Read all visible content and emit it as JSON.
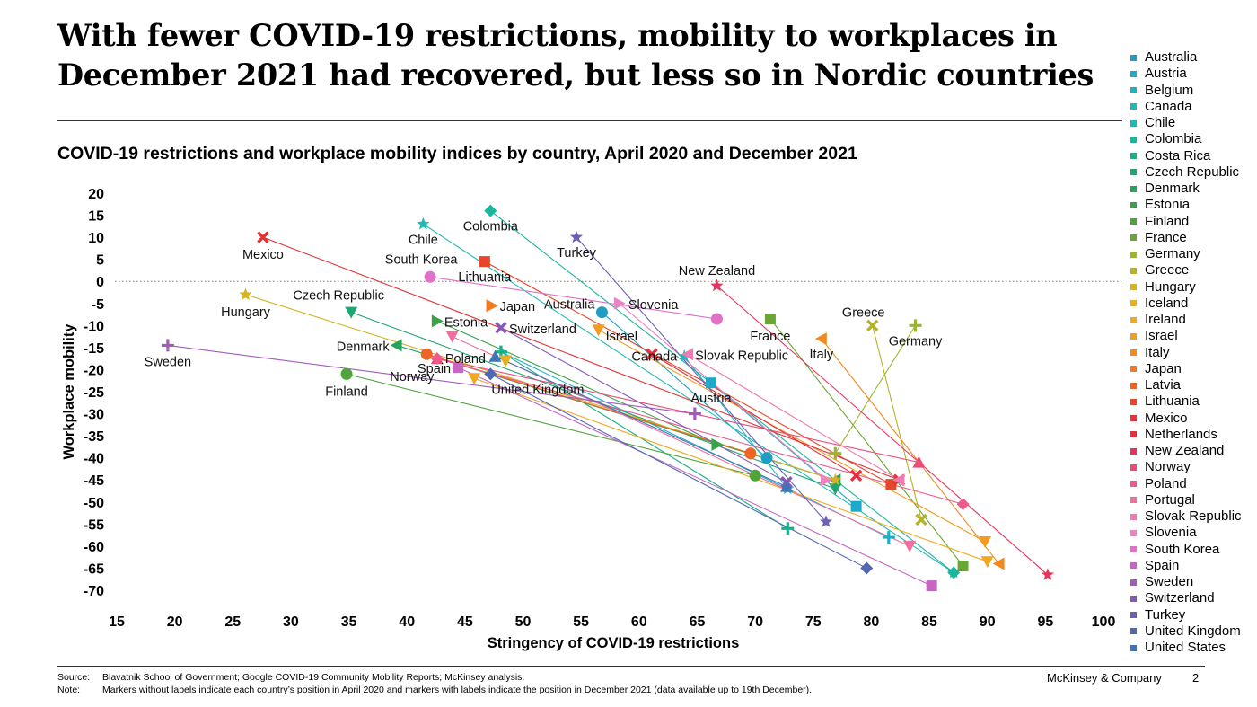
{
  "headline": "With fewer COVID-19 restrictions, mobility to workplaces in December 2021 had recovered, but less so in Nordic countries",
  "footer": {
    "source_key": "Source:",
    "source_text": "Blavatnik School of Government; Google COVID-19 Community Mobility Reports; McKinsey analysis.",
    "note_key": "Note:",
    "note_text": "Markers without labels indicate each country’s position in April 2020 and markers with labels indicate the position in December 2021 (data available up to 19th December).",
    "brand": "McKinsey & Company",
    "page": "2"
  },
  "chart_data": {
    "type": "scatter",
    "title": "COVID-19 restrictions and workplace mobility indices by country, April 2020 and December 2021",
    "xlabel": "Stringency of COVID-19 restrictions",
    "ylabel": "Workplace mobility",
    "xlim": [
      15,
      100
    ],
    "ylim": [
      -70,
      20
    ],
    "xticks": [
      15,
      20,
      25,
      30,
      35,
      40,
      45,
      50,
      55,
      60,
      65,
      70,
      75,
      80,
      85,
      90,
      95,
      100
    ],
    "yticks": [
      20,
      15,
      10,
      5,
      0,
      -5,
      -10,
      -15,
      -20,
      -25,
      -30,
      -35,
      -40,
      -45,
      -50,
      -55,
      -60,
      -65,
      -70
    ],
    "zero_line": "dotted",
    "legend_position": "right",
    "series": [
      {
        "name": "Australia",
        "color": "#1f9ec3",
        "marker": "circle",
        "april_2020": [
          71,
          -40
        ],
        "december_2021": [
          56.8,
          -7
        ],
        "label": "Australia"
      },
      {
        "name": "Austria",
        "color": "#1fa9c8",
        "marker": "square",
        "april_2020": [
          78.7,
          -51
        ],
        "december_2021": [
          66.2,
          -23
        ],
        "label": "Austria"
      },
      {
        "name": "Belgium",
        "color": "#1db0c4",
        "marker": "cross",
        "april_2020": [
          81.5,
          -58
        ],
        "december_2021": [
          48.1,
          -16
        ],
        "label": ""
      },
      {
        "name": "Canada",
        "color": "#21b7bd",
        "marker": "star",
        "april_2020": [
          72.8,
          -47
        ],
        "december_2021": [
          63.9,
          -17
        ],
        "label": "Canada"
      },
      {
        "name": "Chile",
        "color": "#22b9b5",
        "marker": "star",
        "april_2020": [
          87.1,
          -66
        ],
        "december_2021": [
          41.4,
          13
        ],
        "label": "Chile"
      },
      {
        "name": "Colombia",
        "color": "#1ab59d",
        "marker": "diamond",
        "april_2020": [
          87.1,
          -66
        ],
        "december_2021": [
          47.2,
          16
        ],
        "label": "Colombia"
      },
      {
        "name": "Costa Rica",
        "color": "#1cae88",
        "marker": "cross",
        "april_2020": [
          72.8,
          -56
        ],
        "december_2021": [
          48.1,
          -16
        ],
        "label": ""
      },
      {
        "name": "Czech Republic",
        "color": "#20a472",
        "marker": "triangle-down",
        "april_2020": [
          76.9,
          -47
        ],
        "december_2021": [
          35.2,
          -7
        ],
        "label": "Czech Republic"
      },
      {
        "name": "Denmark",
        "color": "#25a35a",
        "marker": "triangle-left",
        "april_2020": [
          76.9,
          -45
        ],
        "december_2021": [
          39.1,
          -14.5
        ],
        "label": "Denmark"
      },
      {
        "name": "Estonia",
        "color": "#3aa34a",
        "marker": "triangle-right",
        "april_2020": [
          66.7,
          -37
        ],
        "december_2021": [
          42.6,
          -9
        ],
        "label": "Estonia"
      },
      {
        "name": "Finland",
        "color": "#4ea43a",
        "marker": "circle",
        "april_2020": [
          70,
          -44
        ],
        "december_2021": [
          34.8,
          -21
        ],
        "label": "Finland"
      },
      {
        "name": "France",
        "color": "#6aa634",
        "marker": "square",
        "april_2020": [
          87.9,
          -64.5
        ],
        "december_2021": [
          71.3,
          -8.5
        ],
        "label": "France"
      },
      {
        "name": "Germany",
        "color": "#9cb52f",
        "marker": "cross",
        "april_2020": [
          76.9,
          -39
        ],
        "december_2021": [
          83.8,
          -10
        ],
        "label": "Germany"
      },
      {
        "name": "Greece",
        "color": "#b3b32a",
        "marker": "x",
        "april_2020": [
          84.3,
          -54
        ],
        "december_2021": [
          80.1,
          -10
        ],
        "label": "Greece"
      },
      {
        "name": "Hungary",
        "color": "#d5b325",
        "marker": "star",
        "april_2020": [
          76.9,
          -45
        ],
        "december_2021": [
          26.1,
          -3
        ],
        "label": "Hungary"
      },
      {
        "name": "Iceland",
        "color": "#e8b021",
        "marker": "triangle-down",
        "april_2020": [
          48.5,
          -18
        ],
        "december_2021": [
          48.5,
          -18
        ],
        "label": ""
      },
      {
        "name": "Ireland",
        "color": "#f2a81f",
        "marker": "triangle-down",
        "april_2020": [
          90,
          -63.5
        ],
        "december_2021": [
          45.8,
          -22
        ],
        "label": ""
      },
      {
        "name": "Israel",
        "color": "#f49c1f",
        "marker": "triangle-down",
        "april_2020": [
          89.8,
          -59
        ],
        "december_2021": [
          56.5,
          -11
        ],
        "label": "Israel"
      },
      {
        "name": "Italy",
        "color": "#f28a1f",
        "marker": "triangle-left",
        "april_2020": [
          91,
          -64
        ],
        "december_2021": [
          75.7,
          -13
        ],
        "label": "Italy"
      },
      {
        "name": "Japan",
        "color": "#f2791f",
        "marker": "triangle-right",
        "april_2020": [
          47.3,
          -5.5
        ],
        "december_2021": [
          47.3,
          -5.5
        ],
        "label": "Japan"
      },
      {
        "name": "Latvia",
        "color": "#ee6422",
        "marker": "circle",
        "april_2020": [
          69.6,
          -39
        ],
        "december_2021": [
          41.7,
          -16.5
        ],
        "label": ""
      },
      {
        "name": "Lithuania",
        "color": "#e84628",
        "marker": "square",
        "april_2020": [
          81.7,
          -46
        ],
        "december_2021": [
          46.7,
          4.5
        ],
        "label": "Lithuania"
      },
      {
        "name": "Mexico",
        "color": "#e33336",
        "marker": "x",
        "april_2020": [
          82.4,
          -45
        ],
        "december_2021": [
          27.6,
          10
        ],
        "label": "Mexico"
      },
      {
        "name": "Netherlands",
        "color": "#e4303f",
        "marker": "x",
        "april_2020": [
          78.7,
          -44
        ],
        "december_2021": [
          61.1,
          -16.5
        ],
        "label": ""
      },
      {
        "name": "New Zealand",
        "color": "#e8345c",
        "marker": "star",
        "april_2020": [
          95.2,
          -66.5
        ],
        "december_2021": [
          66.7,
          -1
        ],
        "label": "New Zealand"
      },
      {
        "name": "Norway",
        "color": "#eb4b75",
        "marker": "triangle-up",
        "april_2020": [
          84.1,
          -41
        ],
        "december_2021": [
          42.6,
          -17.5
        ],
        "label": "Norway"
      },
      {
        "name": "Poland",
        "color": "#ee5a8c",
        "marker": "diamond",
        "april_2020": [
          87.9,
          -50.5
        ],
        "december_2021": [
          42.6,
          -17.5
        ],
        "label": "Poland"
      },
      {
        "name": "Portugal",
        "color": "#ef6fa0",
        "marker": "triangle-down",
        "april_2020": [
          83.3,
          -60
        ],
        "december_2021": [
          43.9,
          -12.5
        ],
        "label": ""
      },
      {
        "name": "Slovak Republic",
        "color": "#f07bb0",
        "marker": "triangle-left",
        "april_2020": [
          82.4,
          -45
        ],
        "december_2021": [
          64.2,
          -16.5
        ],
        "label": "Slovak Republic"
      },
      {
        "name": "Slovenia",
        "color": "#ec84c3",
        "marker": "triangle-right",
        "april_2020": [
          76.1,
          -45
        ],
        "december_2021": [
          58.3,
          -5
        ],
        "label": "Slovenia"
      },
      {
        "name": "South Korea",
        "color": "#e070c8",
        "marker": "circle",
        "april_2020": [
          66.7,
          -8.5
        ],
        "december_2021": [
          42,
          1
        ],
        "label": "South Korea"
      },
      {
        "name": "Spain",
        "color": "#c765c3",
        "marker": "square",
        "april_2020": [
          85.2,
          -69
        ],
        "december_2021": [
          44.4,
          -19.5
        ],
        "label": "Spain"
      },
      {
        "name": "Sweden",
        "color": "#a35abb",
        "marker": "cross",
        "april_2020": [
          64.8,
          -30
        ],
        "december_2021": [
          19.4,
          -14.5
        ],
        "label": "Sweden"
      },
      {
        "name": "Switzerland",
        "color": "#8558b5",
        "marker": "x",
        "april_2020": [
          72.7,
          -45.5
        ],
        "december_2021": [
          48.1,
          -10.5
        ],
        "label": "Switzerland"
      },
      {
        "name": "Turkey",
        "color": "#6d5fb7",
        "marker": "star",
        "april_2020": [
          76.1,
          -54.5
        ],
        "december_2021": [
          54.6,
          10
        ],
        "label": "Turkey"
      },
      {
        "name": "United Kingdom",
        "color": "#5167b2",
        "marker": "diamond",
        "april_2020": [
          79.6,
          -65
        ],
        "december_2021": [
          47.2,
          -21
        ],
        "label": "United Kingdom"
      },
      {
        "name": "United States",
        "color": "#3f74b9",
        "marker": "triangle-up",
        "april_2020": [
          72.7,
          -46.5
        ],
        "december_2021": [
          47.6,
          -17
        ],
        "label": ""
      }
    ]
  }
}
